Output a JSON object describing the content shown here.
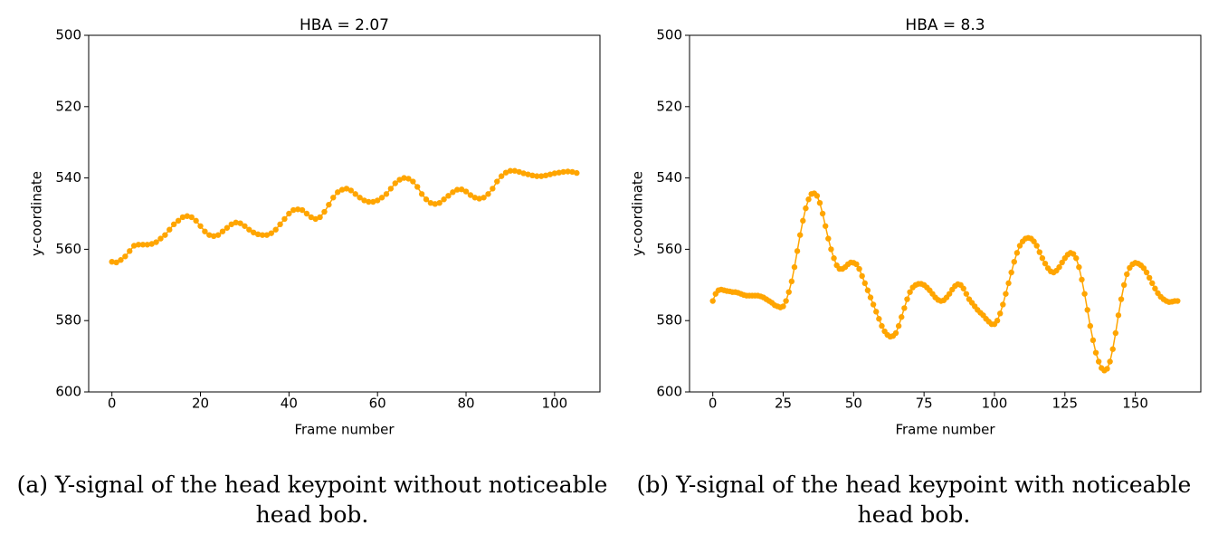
{
  "chart_data": [
    {
      "type": "line",
      "title": "HBA = 2.07",
      "x_label": "Frame number",
      "y_label": "y-coordinate",
      "color": "#ffa500",
      "grid": false,
      "caption": "(a) Y-signal of the head keypoint without noticeable head bob.",
      "xlim": [
        -5.25,
        110.25
      ],
      "xticks": [
        0,
        20,
        40,
        60,
        80,
        100
      ],
      "ylim": [
        600,
        500
      ],
      "yticks": [
        500,
        520,
        540,
        560,
        580,
        600
      ],
      "x": [
        0,
        1,
        2,
        3,
        4,
        5,
        6,
        7,
        8,
        9,
        10,
        11,
        12,
        13,
        14,
        15,
        16,
        17,
        18,
        19,
        20,
        21,
        22,
        23,
        24,
        25,
        26,
        27,
        28,
        29,
        30,
        31,
        32,
        33,
        34,
        35,
        36,
        37,
        38,
        39,
        40,
        41,
        42,
        43,
        44,
        45,
        46,
        47,
        48,
        49,
        50,
        51,
        52,
        53,
        54,
        55,
        56,
        57,
        58,
        59,
        60,
        61,
        62,
        63,
        64,
        65,
        66,
        67,
        68,
        69,
        70,
        71,
        72,
        73,
        74,
        75,
        76,
        77,
        78,
        79,
        80,
        81,
        82,
        83,
        84,
        85,
        86,
        87,
        88,
        89,
        90,
        91,
        92,
        93,
        94,
        95,
        96,
        97,
        98,
        99,
        100,
        101,
        102,
        103,
        104,
        105
      ],
      "values": [
        563.5,
        563.7,
        563,
        562,
        560.5,
        559,
        558.7,
        558.7,
        558.7,
        558.5,
        558,
        557,
        556,
        554.5,
        553,
        552,
        551,
        550.7,
        551,
        552,
        553.5,
        555,
        556,
        556.3,
        556,
        555,
        554,
        553,
        552.5,
        552.7,
        553.5,
        554.5,
        555.3,
        555.8,
        556,
        556,
        555.5,
        554.5,
        553,
        551.5,
        550,
        549,
        548.8,
        549,
        550,
        551,
        551.5,
        551,
        549.5,
        547.5,
        545.5,
        544,
        543.3,
        543,
        543.5,
        544.5,
        545.5,
        546.3,
        546.7,
        546.7,
        546.3,
        545.5,
        544.5,
        543,
        541.5,
        540.5,
        540,
        540.2,
        541,
        542.5,
        544.5,
        546,
        547,
        547.3,
        547,
        546,
        545,
        544,
        543.3,
        543.2,
        543.8,
        544.8,
        545.5,
        545.8,
        545.5,
        544.5,
        543,
        541,
        539.5,
        538.5,
        538,
        538,
        538.3,
        538.7,
        539,
        539.3,
        539.5,
        539.5,
        539.3,
        539,
        538.7,
        538.5,
        538.3,
        538.2,
        538.3,
        538.6
      ]
    },
    {
      "type": "line",
      "title": "HBA = 8.3",
      "x_label": "Frame number",
      "y_label": "y-coordinate",
      "color": "#ffa500",
      "grid": false,
      "caption": "(b) Y-signal of the head keypoint with noticeable head bob.",
      "xlim": [
        -8.25,
        173.25
      ],
      "xticks": [
        0,
        25,
        50,
        75,
        100,
        125,
        150
      ],
      "ylim": [
        600,
        500
      ],
      "yticks": [
        500,
        520,
        540,
        560,
        580,
        600
      ],
      "x": [
        0,
        1,
        2,
        3,
        4,
        5,
        6,
        7,
        8,
        9,
        10,
        11,
        12,
        13,
        14,
        15,
        16,
        17,
        18,
        19,
        20,
        21,
        22,
        23,
        24,
        25,
        26,
        27,
        28,
        29,
        30,
        31,
        32,
        33,
        34,
        35,
        36,
        37,
        38,
        39,
        40,
        41,
        42,
        43,
        44,
        45,
        46,
        47,
        48,
        49,
        50,
        51,
        52,
        53,
        54,
        55,
        56,
        57,
        58,
        59,
        60,
        61,
        62,
        63,
        64,
        65,
        66,
        67,
        68,
        69,
        70,
        71,
        72,
        73,
        74,
        75,
        76,
        77,
        78,
        79,
        80,
        81,
        82,
        83,
        84,
        85,
        86,
        87,
        88,
        89,
        90,
        91,
        92,
        93,
        94,
        95,
        96,
        97,
        98,
        99,
        100,
        101,
        102,
        103,
        104,
        105,
        106,
        107,
        108,
        109,
        110,
        111,
        112,
        113,
        114,
        115,
        116,
        117,
        118,
        119,
        120,
        121,
        122,
        123,
        124,
        125,
        126,
        127,
        128,
        129,
        130,
        131,
        132,
        133,
        134,
        135,
        136,
        137,
        138,
        139,
        140,
        141,
        142,
        143,
        144,
        145,
        146,
        147,
        148,
        149,
        150,
        151,
        152,
        153,
        154,
        155,
        156,
        157,
        158,
        159,
        160,
        161,
        162,
        163,
        164,
        165
      ],
      "values": [
        574.5,
        572.5,
        571.5,
        571.3,
        571.5,
        571.7,
        571.8,
        572,
        572,
        572.2,
        572.5,
        572.8,
        573,
        573,
        573,
        573,
        573,
        573.2,
        573.5,
        574,
        574.5,
        575,
        575.7,
        576,
        576.3,
        576,
        574.5,
        572,
        569,
        565,
        560.5,
        556,
        552,
        548.5,
        546,
        544.5,
        544.3,
        545,
        547,
        550,
        553.5,
        557,
        560,
        562.5,
        564.5,
        565.5,
        565.5,
        565,
        564.2,
        563.7,
        563.8,
        564.2,
        565.5,
        567.5,
        569.5,
        571.5,
        573.5,
        575.5,
        577.5,
        579.5,
        581.5,
        583,
        584,
        584.5,
        584.3,
        583.5,
        581.5,
        579,
        576.5,
        574,
        572,
        570.7,
        570,
        569.7,
        569.7,
        570,
        570.7,
        571.5,
        572.5,
        573.5,
        574.2,
        574.5,
        574.3,
        573.5,
        572.5,
        571.3,
        570.3,
        569.8,
        570,
        571,
        572.5,
        574,
        575,
        576,
        577,
        577.8,
        578.5,
        579.5,
        580.3,
        581,
        581,
        580,
        578,
        575.5,
        572.5,
        569.5,
        566.5,
        563.5,
        561,
        559,
        557.8,
        557,
        556.8,
        557,
        557.8,
        559,
        560.8,
        562.5,
        564,
        565.3,
        566.2,
        566.5,
        566,
        565,
        563.7,
        562.5,
        561.5,
        561,
        561.3,
        562.5,
        565,
        568.5,
        572.5,
        577,
        581.5,
        585.5,
        589,
        591.5,
        593.3,
        594,
        593.5,
        591.5,
        588,
        583.5,
        578.5,
        574,
        570,
        567,
        565.2,
        564.2,
        563.8,
        564,
        564.5,
        565.3,
        566.5,
        568,
        569.5,
        571,
        572.3,
        573.3,
        574,
        574.5,
        574.8,
        574.7,
        574.5,
        574.5
      ]
    }
  ]
}
